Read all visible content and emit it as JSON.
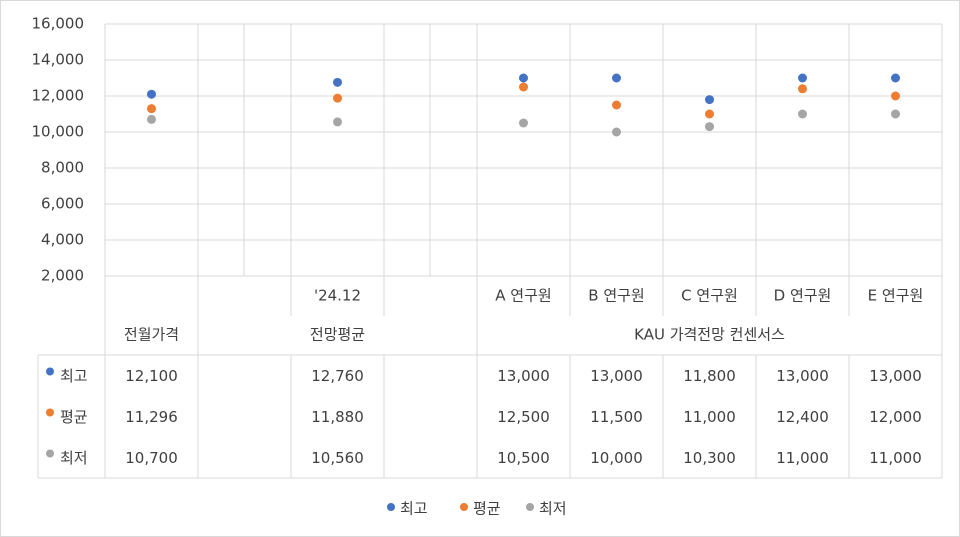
{
  "chart_data": {
    "type": "scatter",
    "categories": [
      null,
      null,
      "'24.12",
      null,
      "A 연구원",
      "B 연구원",
      "C 연구원",
      "D 연구원",
      "E 연구원"
    ],
    "category_groups": [
      {
        "label": "전월가격",
        "span": 1
      },
      {
        "label": "전망평균",
        "span": 3
      },
      {
        "label": "KAU 가격전망 컨센서스",
        "span": 5
      }
    ],
    "series": [
      {
        "name": "최고",
        "color": "#4472c4",
        "values": [
          12100,
          null,
          12760,
          null,
          13000,
          13000,
          11800,
          13000,
          13000
        ],
        "value_labels": [
          "12,100",
          null,
          "12,760",
          null,
          "13,000",
          "13,000",
          "11,800",
          "13,000",
          "13,000"
        ]
      },
      {
        "name": "평균",
        "color": "#ed7d31",
        "values": [
          11296,
          null,
          11880,
          null,
          12500,
          11500,
          11000,
          12400,
          12000
        ],
        "value_labels": [
          "11,296",
          null,
          "11,880",
          null,
          "12,500",
          "11,500",
          "11,000",
          "12,400",
          "12,000"
        ]
      },
      {
        "name": "최저",
        "color": "#a5a5a5",
        "values": [
          10700,
          null,
          10560,
          null,
          10500,
          10000,
          10300,
          11000,
          11000
        ],
        "value_labels": [
          "10,700",
          null,
          "10,560",
          null,
          "10,500",
          "10,000",
          "10,300",
          "11,000",
          "11,000"
        ]
      }
    ],
    "ylim": [
      2000,
      16000
    ],
    "yticks": [
      {
        "value": 2000,
        "label": "2,000"
      },
      {
        "value": 4000,
        "label": "4,000"
      },
      {
        "value": 6000,
        "label": "6,000"
      },
      {
        "value": 8000,
        "label": "8,000"
      },
      {
        "value": 10000,
        "label": "10,000"
      },
      {
        "value": 12000,
        "label": "12,000"
      },
      {
        "value": 14000,
        "label": "14,000"
      },
      {
        "value": 16000,
        "label": "16,000"
      }
    ],
    "grid": true,
    "legend": "bottom"
  }
}
